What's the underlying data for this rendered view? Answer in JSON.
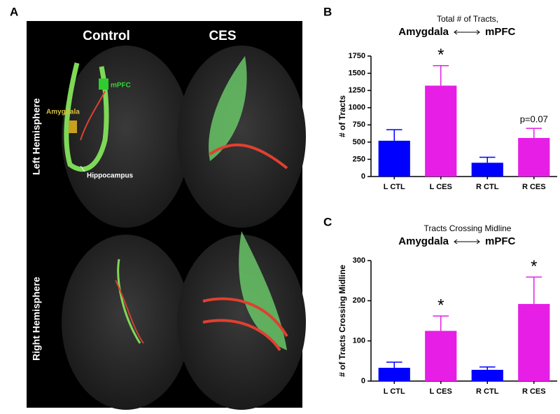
{
  "panel_labels": [
    "A",
    "B",
    "C"
  ],
  "panel_a": {
    "columns": [
      "Control",
      "CES"
    ],
    "rows": [
      "Left Hemisphere",
      "Right Hemisphere"
    ],
    "regions": {
      "mpfc": "mPFC",
      "amygdala": "Amygdala",
      "hippocampus": "Hippocampus"
    }
  },
  "chart_data": [
    {
      "type": "bar",
      "title": "Total # of Tracts,",
      "subtitle_left": "Amygdala",
      "subtitle_right": "mPFC",
      "y_label": "# of Tracts",
      "categories": [
        "L CTL",
        "L CES",
        "R CTL",
        "R CES"
      ],
      "values": [
        520,
        1320,
        200,
        560
      ],
      "errors": [
        160,
        290,
        80,
        140
      ],
      "colors": [
        "#0000ff",
        "#e61ee6",
        "#0000ff",
        "#e61ee6"
      ],
      "ylim": [
        0,
        1750
      ],
      "yticks": [
        0,
        250,
        500,
        750,
        1000,
        1250,
        1500,
        1750
      ],
      "annotations": [
        {
          "text": "*",
          "category": "L CES"
        },
        {
          "text": "p=0.07",
          "category": "R CES"
        }
      ]
    },
    {
      "type": "bar",
      "title": "Tracts Crossing Midline",
      "subtitle_left": "Amygdala",
      "subtitle_right": "mPFC",
      "y_label": "# of Tracts Crossing Midline",
      "categories": [
        "L CTL",
        "L CES",
        "R CTL",
        "R CES"
      ],
      "values": [
        33,
        125,
        28,
        192
      ],
      "errors": [
        14,
        37,
        7,
        67
      ],
      "colors": [
        "#0000ff",
        "#e61ee6",
        "#0000ff",
        "#e61ee6"
      ],
      "ylim": [
        0,
        300
      ],
      "yticks": [
        0,
        100,
        200,
        300
      ],
      "annotations": [
        {
          "text": "*",
          "category": "L CES"
        },
        {
          "text": "*",
          "category": "R CES"
        }
      ]
    }
  ]
}
